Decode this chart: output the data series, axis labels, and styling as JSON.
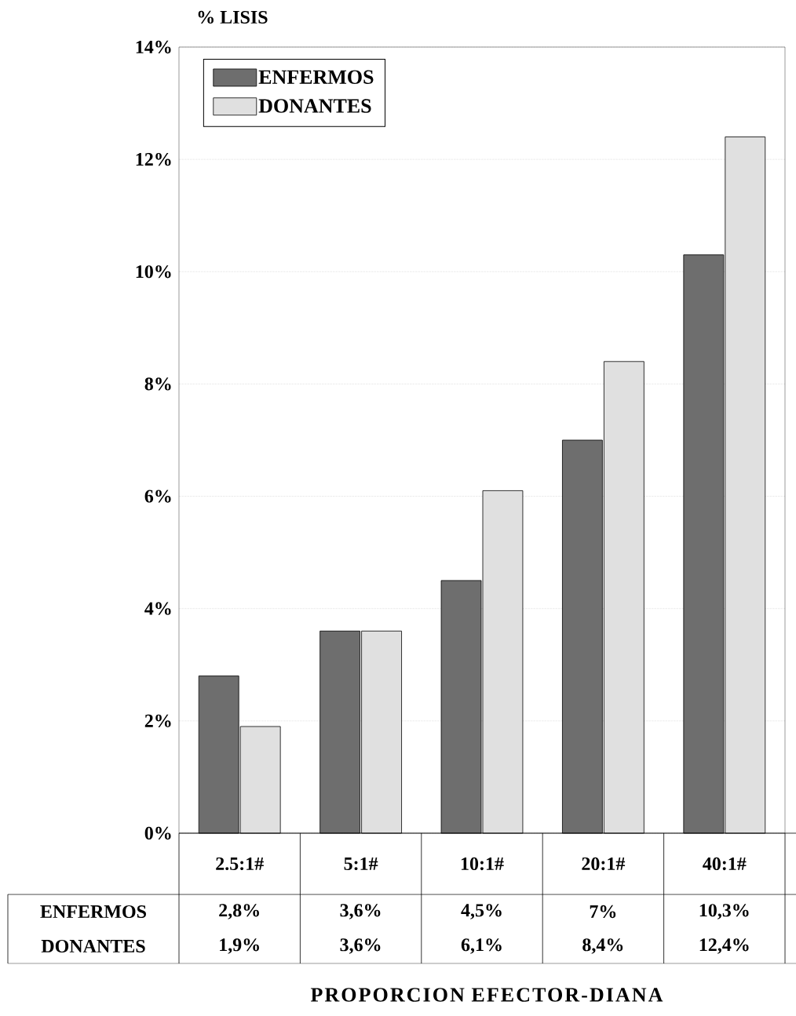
{
  "chart_data": {
    "type": "bar",
    "ylabel": "% LISIS",
    "annotations": [
      "PROPORCION EFECTOR-DIANA"
    ],
    "categories": [
      "2.5:1#",
      "5:1#",
      "10:1#",
      "20:1#",
      "40:1#"
    ],
    "series": [
      {
        "name": "ENFERMOS",
        "color": "#6e6e6e",
        "values": [
          2.8,
          3.6,
          4.5,
          7,
          10.3
        ],
        "value_labels": [
          "2,8%",
          "3,6%",
          "4,5%",
          "7%",
          "10,3%"
        ]
      },
      {
        "name": "DONANTES",
        "color": "#e0e0e0",
        "values": [
          1.9,
          3.6,
          6.1,
          8.4,
          12.4
        ],
        "value_labels": [
          "1,9%",
          "3,6%",
          "6,1%",
          "8,4%",
          "12,4%"
        ]
      }
    ],
    "ylim": [
      0,
      14
    ],
    "yticks": [
      {
        "value": 0,
        "label": "0%"
      },
      {
        "value": 2,
        "label": "2%"
      },
      {
        "value": 4,
        "label": "4%"
      },
      {
        "value": 6,
        "label": "6%"
      },
      {
        "value": 8,
        "label": "8%"
      },
      {
        "value": 10,
        "label": "10%"
      },
      {
        "value": 12,
        "label": "12%"
      },
      {
        "value": 14,
        "label": "14%"
      }
    ],
    "grid": "y",
    "legend": "top left"
  }
}
